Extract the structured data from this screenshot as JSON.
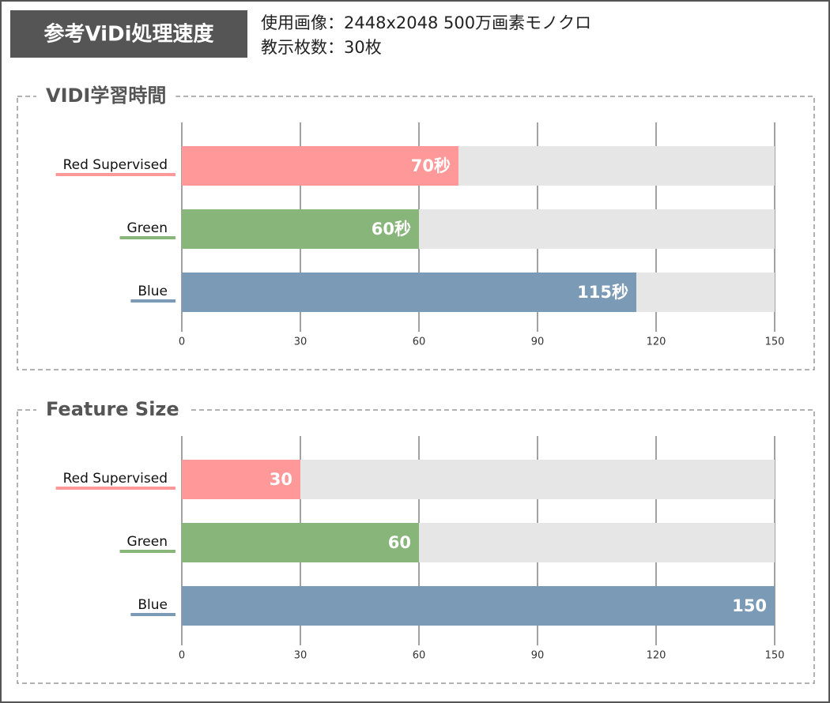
{
  "header": {
    "title": "参考ViDi処理速度",
    "info": [
      "使用画像：2448x2048 500万画素モノクロ",
      "教示枚数：30枚"
    ]
  },
  "chart_data": [
    {
      "type": "bar",
      "orientation": "horizontal",
      "title": "VIDI学習時間",
      "categories": [
        "Red Supervised",
        "Green",
        "Blue"
      ],
      "values": [
        70,
        60,
        115
      ],
      "value_labels": [
        "70秒",
        "60秒",
        "115秒"
      ],
      "colors": [
        "#ff9999",
        "#88b57a",
        "#7b9ab5"
      ],
      "xlim": [
        0,
        150
      ],
      "xticks": [
        0,
        30,
        60,
        90,
        120,
        150
      ],
      "grid": true
    },
    {
      "type": "bar",
      "orientation": "horizontal",
      "title": "Feature Size",
      "categories": [
        "Red Supervised",
        "Green",
        "Blue"
      ],
      "values": [
        30,
        60,
        150
      ],
      "colors": [
        "#ff9999",
        "#88b57a",
        "#7b9ab5"
      ],
      "xlim": [
        0,
        150
      ],
      "xticks": [
        0,
        30,
        60,
        90,
        120,
        150
      ],
      "grid": true
    }
  ]
}
